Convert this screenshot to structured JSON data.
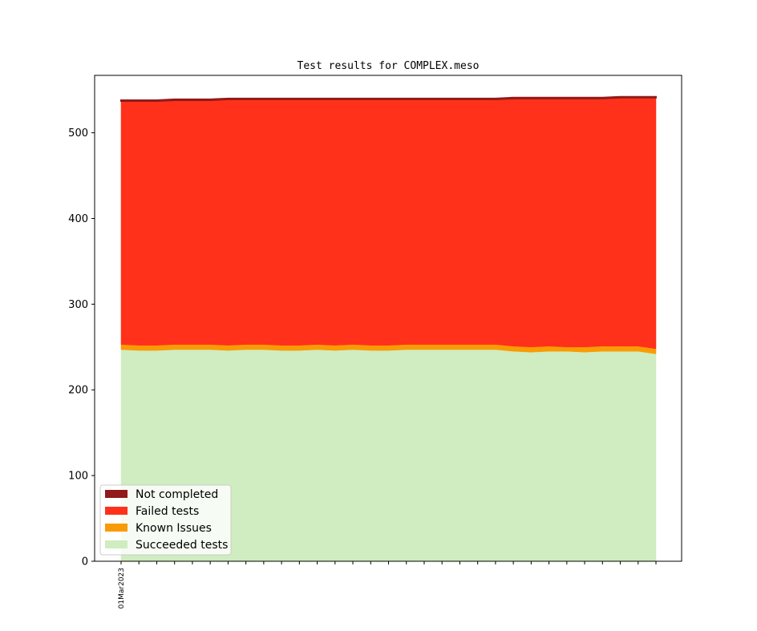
{
  "chart_data": {
    "type": "area",
    "title": "Test results for COMPLEX.meso",
    "xlabel": "",
    "ylabel": "",
    "stacked": true,
    "ylim": [
      0,
      567
    ],
    "yticks": [
      0,
      100,
      200,
      300,
      400,
      500
    ],
    "x_tick_count": 31,
    "x_tick_labels": [
      "01Mar2023"
    ],
    "x_tick_label_indices": [
      0
    ],
    "legend_position": "lower-left",
    "grid": false,
    "series": [
      {
        "name": "Succeeded tests",
        "color": "#cfedc0",
        "values": [
          247,
          246,
          246,
          247,
          247,
          247,
          246,
          247,
          247,
          246,
          246,
          247,
          246,
          247,
          246,
          246,
          247,
          247,
          247,
          247,
          247,
          247,
          245,
          244,
          245,
          245,
          244,
          245,
          245,
          245,
          242
        ]
      },
      {
        "name": "Known Issues",
        "color": "#f99b05",
        "values": [
          6,
          6,
          6,
          6,
          6,
          6,
          6,
          6,
          6,
          6,
          6,
          6,
          6,
          6,
          6,
          6,
          6,
          6,
          6,
          6,
          6,
          6,
          6,
          6,
          6,
          5,
          6,
          6,
          6,
          6,
          6
        ]
      },
      {
        "name": "Failed tests",
        "color": "#ff311a",
        "values": [
          284,
          285,
          285,
          285,
          285,
          285,
          287,
          286,
          286,
          287,
          287,
          286,
          287,
          286,
          287,
          287,
          286,
          286,
          286,
          286,
          286,
          286,
          289,
          290,
          289,
          290,
          290,
          289,
          290,
          290,
          293
        ]
      },
      {
        "name": "Not completed",
        "color": "#911a1a",
        "values": [
          1,
          1,
          1,
          1,
          1,
          1,
          1,
          1,
          1,
          1,
          1,
          1,
          1,
          1,
          1,
          1,
          1,
          1,
          1,
          1,
          1,
          1,
          1,
          1,
          1,
          1,
          1,
          1,
          1,
          1,
          1
        ]
      }
    ],
    "legend_order": [
      "Not completed",
      "Failed tests",
      "Known Issues",
      "Succeeded tests"
    ]
  }
}
